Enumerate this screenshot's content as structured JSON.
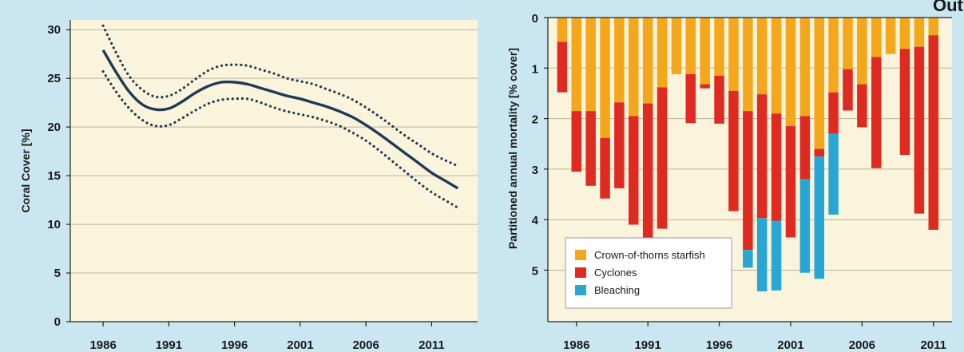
{
  "chart_data": [
    {
      "type": "line",
      "ylabel": "Coral Cover [%]",
      "xlabel": "",
      "ylim": [
        0,
        31
      ],
      "xlim": [
        1983.5,
        2014.5
      ],
      "x_ticks": [
        "1986",
        "1991",
        "1996",
        "2001",
        "2006",
        "2011"
      ],
      "y_ticks": [
        "0",
        "5",
        "10",
        "15",
        "20",
        "25",
        "30"
      ],
      "grid": true,
      "series": [
        {
          "role": "estimate",
          "x": [
            1986,
            1987,
            1988,
            1989,
            1990,
            1991,
            1992,
            1993,
            1994,
            1995,
            1996,
            1997,
            1998,
            1999,
            2000,
            2001,
            2002,
            2003,
            2004,
            2005,
            2006,
            2007,
            2008,
            2009,
            2010,
            2011,
            2012,
            2013
          ],
          "values": [
            27.9,
            25.6,
            23.6,
            22.3,
            21.8,
            21.9,
            22.6,
            23.5,
            24.2,
            24.6,
            24.6,
            24.4,
            24.0,
            23.6,
            23.2,
            22.9,
            22.5,
            22.1,
            21.6,
            21.0,
            20.2,
            19.3,
            18.3,
            17.3,
            16.3,
            15.3,
            14.5,
            13.7
          ],
          "color": "#1f3a55"
        },
        {
          "role": "upper_bound",
          "x": [
            1986,
            1987,
            1988,
            1989,
            1990,
            1991,
            1992,
            1993,
            1994,
            1995,
            1996,
            1997,
            1998,
            1999,
            2000,
            2001,
            2002,
            2003,
            2004,
            2005,
            2006,
            2007,
            2008,
            2009,
            2010,
            2011,
            2012,
            2013
          ],
          "values": [
            30.4,
            27.6,
            25.2,
            23.8,
            23.1,
            23.2,
            23.9,
            24.9,
            25.8,
            26.3,
            26.4,
            26.3,
            25.9,
            25.5,
            25.0,
            24.7,
            24.4,
            23.9,
            23.4,
            22.8,
            22.0,
            21.1,
            20.1,
            19.1,
            18.2,
            17.3,
            16.6,
            16.0
          ],
          "color": "#1f3a55"
        },
        {
          "role": "lower_bound",
          "x": [
            1986,
            1987,
            1988,
            1989,
            1990,
            1991,
            1992,
            1993,
            1994,
            1995,
            1996,
            1997,
            1998,
            1999,
            2000,
            2001,
            2002,
            2003,
            2004,
            2005,
            2006,
            2007,
            2008,
            2009,
            2010,
            2011,
            2012,
            2013
          ],
          "values": [
            25.7,
            23.6,
            21.9,
            20.7,
            20.1,
            20.2,
            20.9,
            21.7,
            22.4,
            22.8,
            22.9,
            22.9,
            22.5,
            22.0,
            21.6,
            21.3,
            21.0,
            20.6,
            20.1,
            19.4,
            18.6,
            17.6,
            16.5,
            15.4,
            14.3,
            13.3,
            12.5,
            11.7
          ],
          "color": "#1f3a55"
        }
      ]
    },
    {
      "type": "bar",
      "stacked": true,
      "ylabel": "Partitioned annual mortality [% cover]",
      "xlabel": "",
      "y_inverted": true,
      "ylim": [
        0,
        6
      ],
      "xlim": [
        1984.0,
        2012.3
      ],
      "x_ticks": [
        "1986",
        "1991",
        "1996",
        "2001",
        "2006",
        "2011"
      ],
      "y_ticks": [
        "0",
        "1",
        "2",
        "3",
        "4",
        "5"
      ],
      "grid": true,
      "legend_position": "bottom-left",
      "corner_text": "Out",
      "x": [
        1985,
        1986,
        1987,
        1988,
        1989,
        1990,
        1991,
        1992,
        1993,
        1994,
        1995,
        1996,
        1997,
        1998,
        1999,
        2000,
        2001,
        2002,
        2003,
        2004,
        2005,
        2006,
        2007,
        2008,
        2009,
        2010,
        2011
      ],
      "series": [
        {
          "name": "Crown-of-thorns starfish",
          "color": "#f5a71c",
          "values": [
            0.48,
            1.85,
            1.85,
            2.38,
            1.68,
            1.95,
            1.7,
            1.38,
            1.12,
            1.12,
            1.32,
            1.15,
            1.45,
            1.85,
            1.52,
            1.9,
            2.15,
            1.95,
            2.6,
            1.48,
            1.02,
            1.32,
            0.78,
            0.72,
            0.62,
            0.58,
            0.35
          ]
        },
        {
          "name": "Cyclones",
          "color": "#df2a22",
          "values": [
            1.0,
            1.2,
            1.48,
            1.2,
            1.7,
            2.15,
            2.68,
            2.8,
            0,
            0.97,
            0.08,
            0.95,
            2.38,
            2.75,
            2.45,
            2.12,
            2.2,
            1.25,
            0.15,
            0.82,
            0.82,
            0.85,
            2.2,
            0,
            2.1,
            3.3,
            3.85
          ]
        },
        {
          "name": "Bleaching",
          "color": "#29a7d4",
          "values": [
            0,
            0,
            0,
            0,
            0,
            0,
            0,
            0,
            0,
            0,
            0,
            0,
            0,
            0.35,
            1.45,
            1.38,
            0,
            1.85,
            2.42,
            1.6,
            0,
            0,
            0,
            0,
            0,
            0,
            0
          ]
        }
      ]
    }
  ]
}
